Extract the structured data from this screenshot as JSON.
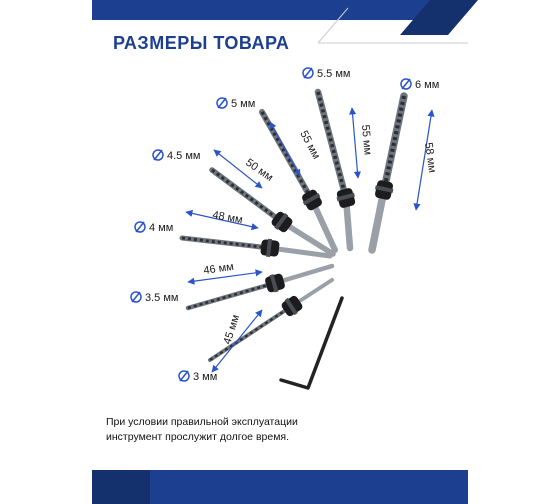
{
  "title": "РАЗМЕРЫ ТОВАРА",
  "diameters": [
    "3 мм",
    "3.5 мм",
    "4 мм",
    "4.5 мм",
    "5 мм",
    "5.5 мм",
    "6 мм"
  ],
  "lengths": [
    "45 мм",
    "46 мм",
    "48 мм",
    "50 мм",
    "55 мм",
    "55 мм",
    "58 мм"
  ],
  "note": {
    "line1": "При условии правильной эксплуатации",
    "line2": "инструмент прослужит долгое время."
  },
  "colors": {
    "brand_blue": "#1d3f8f",
    "dimension_blue": "#2a54c8",
    "dark_blue": "#14306d"
  },
  "icons": [
    "diameter-icon",
    "hex-key"
  ]
}
